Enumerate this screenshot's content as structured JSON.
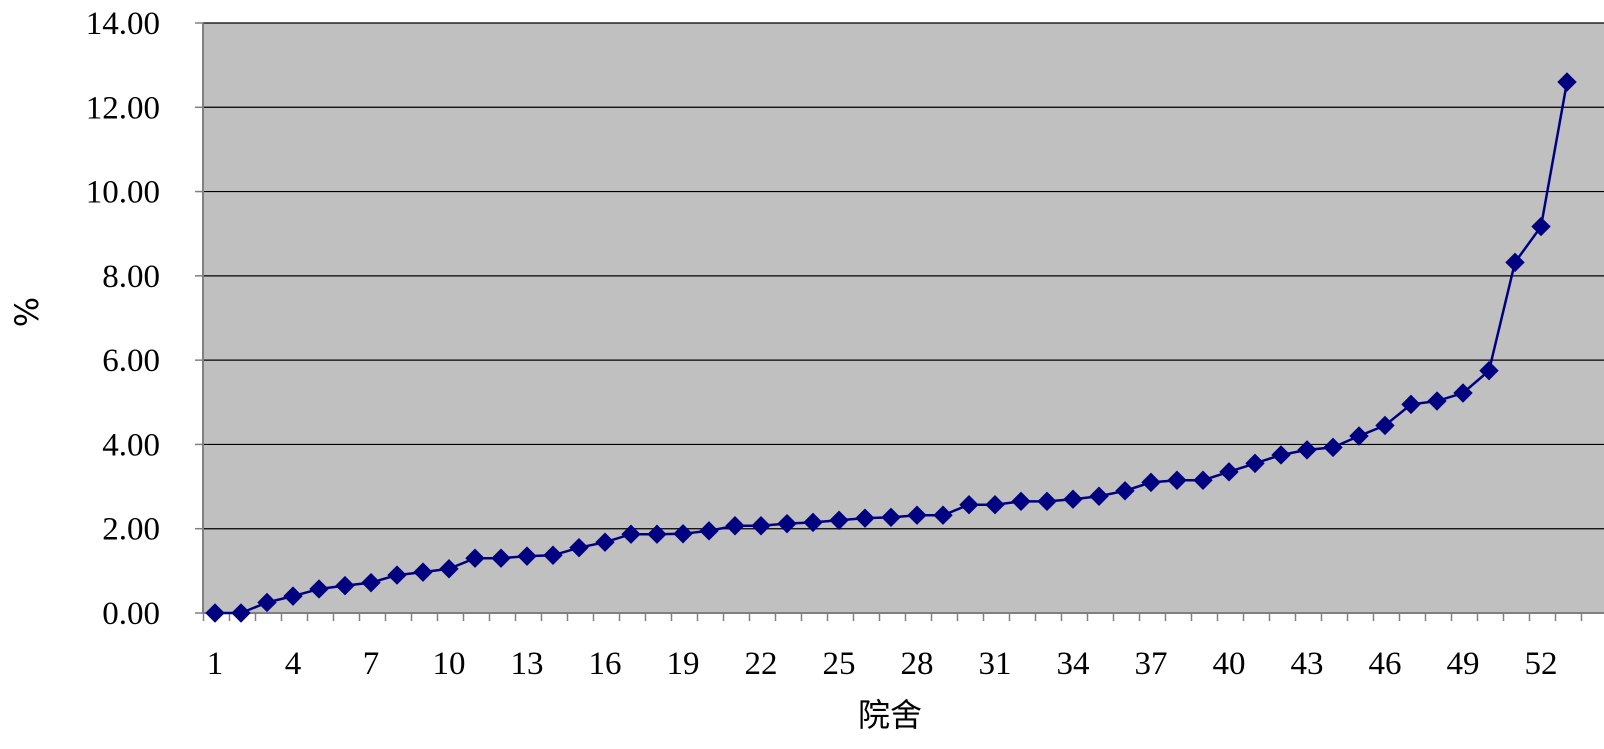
{
  "chart_data": {
    "type": "line",
    "title": "",
    "xlabel": "院舍",
    "ylabel": "%",
    "ylim": [
      0,
      14
    ],
    "y_ticks": [
      "0.00",
      "2.00",
      "4.00",
      "6.00",
      "8.00",
      "10.00",
      "12.00",
      "14.00"
    ],
    "x_tick_labels": [
      "1",
      "4",
      "7",
      "10",
      "13",
      "16",
      "19",
      "22",
      "25",
      "28",
      "31",
      "34",
      "37",
      "40",
      "43",
      "46",
      "49",
      "52"
    ],
    "x": [
      1,
      2,
      3,
      4,
      5,
      6,
      7,
      8,
      9,
      10,
      11,
      12,
      13,
      14,
      15,
      16,
      17,
      18,
      19,
      20,
      21,
      22,
      23,
      24,
      25,
      26,
      27,
      28,
      29,
      30,
      31,
      32,
      33,
      34,
      35,
      36,
      37,
      38,
      39,
      40,
      41,
      42,
      43,
      44,
      45,
      46,
      47,
      48,
      49,
      50,
      51,
      52,
      53
    ],
    "series": [
      {
        "marker": "diamond",
        "color": "#000080",
        "values": [
          0.0,
          0.0,
          0.25,
          0.4,
          0.57,
          0.65,
          0.72,
          0.9,
          0.97,
          1.05,
          1.3,
          1.3,
          1.35,
          1.37,
          1.55,
          1.68,
          1.87,
          1.87,
          1.88,
          1.95,
          2.07,
          2.07,
          2.12,
          2.15,
          2.2,
          2.25,
          2.27,
          2.32,
          2.32,
          2.57,
          2.57,
          2.65,
          2.65,
          2.7,
          2.77,
          2.9,
          3.1,
          3.15,
          3.15,
          3.35,
          3.55,
          3.75,
          3.87,
          3.93,
          4.2,
          4.45,
          4.95,
          5.03,
          5.22,
          5.75,
          8.32,
          9.17,
          12.6
        ]
      }
    ],
    "grid": true,
    "legend": "none",
    "plot_background": "#C0C0C0",
    "grid_color": "#000000",
    "axis_color": "#808080"
  }
}
